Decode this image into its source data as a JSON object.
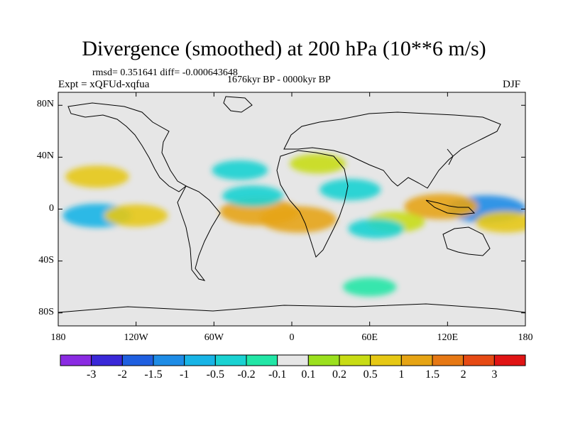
{
  "chart_data": {
    "type": "heatmap",
    "title": "Divergence (smoothed) at 200 hPa (10**6 m/s)",
    "stats": "rmsd= 0.351641 diff= -0.000643648",
    "period": "1676kyr BP - 0000kyr BP",
    "experiment": "Expt = xQFUd-xqfua",
    "season": "DJF",
    "y_ticks": [
      {
        "label": "80N",
        "value": 80
      },
      {
        "label": "40N",
        "value": 40
      },
      {
        "label": "0",
        "value": 0
      },
      {
        "label": "40S",
        "value": -40
      },
      {
        "label": "80S",
        "value": -80
      }
    ],
    "x_ticks": [
      {
        "label": "180",
        "value": -180
      },
      {
        "label": "120W",
        "value": -120
      },
      {
        "label": "60W",
        "value": -60
      },
      {
        "label": "0",
        "value": 0
      },
      {
        "label": "60E",
        "value": 60
      },
      {
        "label": "120E",
        "value": 120
      },
      {
        "label": "180",
        "value": 180
      }
    ],
    "xlim": [
      -180,
      180
    ],
    "ylim": [
      -90,
      90
    ],
    "colorbar": {
      "colors": [
        "#8a2be2",
        "#3a28d8",
        "#1f5fe0",
        "#1e8ce6",
        "#18b4e6",
        "#1ad2d2",
        "#22e6a6",
        "#e6e6e6",
        "#9be01e",
        "#c8dc14",
        "#e6c814",
        "#e6a414",
        "#e67814",
        "#e64a14",
        "#e01414"
      ],
      "tick_labels": [
        "-3",
        "-2",
        "-1.5",
        "-1",
        "-0.5",
        "-0.2",
        "-0.1",
        "0.1",
        "0.2",
        "0.5",
        "1",
        "1.5",
        "2",
        "3"
      ],
      "levels": [
        -3,
        -2,
        -1.5,
        -1,
        -0.5,
        -0.2,
        -0.1,
        0.1,
        0.2,
        0.5,
        1,
        1.5,
        2,
        3
      ]
    },
    "field_features": [
      {
        "name": "W Pacific convergence",
        "lon": 150,
        "lat": 0,
        "value": -1.2
      },
      {
        "name": "Maritime continent divergence",
        "lon": 115,
        "lat": 2,
        "value": 1.0
      },
      {
        "name": "S Atlantic/Brazil divergence",
        "lon": -25,
        "lat": -2,
        "value": 1.2
      },
      {
        "name": "Congo divergence",
        "lon": 5,
        "lat": -8,
        "value": 1.1
      },
      {
        "name": "Arabian convergence",
        "lon": 45,
        "lat": 15,
        "value": -0.5
      },
      {
        "name": "Trop Atlantic convergence",
        "lon": -30,
        "lat": 10,
        "value": -0.5
      },
      {
        "name": "NE Pacific divergence",
        "lon": -150,
        "lat": 25,
        "value": 0.6
      },
      {
        "name": "E Pacific convergence",
        "lon": -150,
        "lat": -5,
        "value": -0.8
      },
      {
        "name": "S Pacific divergence",
        "lon": -120,
        "lat": -5,
        "value": 0.6
      },
      {
        "name": "SW Pacific divergence",
        "lon": 165,
        "lat": -10,
        "value": 0.5
      },
      {
        "name": "Indian Ocean divergence",
        "lon": 80,
        "lat": -10,
        "value": 0.4
      },
      {
        "name": "Indian Ocean convergence",
        "lon": 65,
        "lat": -15,
        "value": -0.3
      },
      {
        "name": "N Atlantic convergence",
        "lon": -40,
        "lat": 30,
        "value": -0.3
      },
      {
        "name": "Mediterranean divergence",
        "lon": 20,
        "lat": 35,
        "value": 0.3
      },
      {
        "name": "Southern Ocean convergence",
        "lon": 60,
        "lat": -60,
        "value": -0.2
      }
    ]
  }
}
